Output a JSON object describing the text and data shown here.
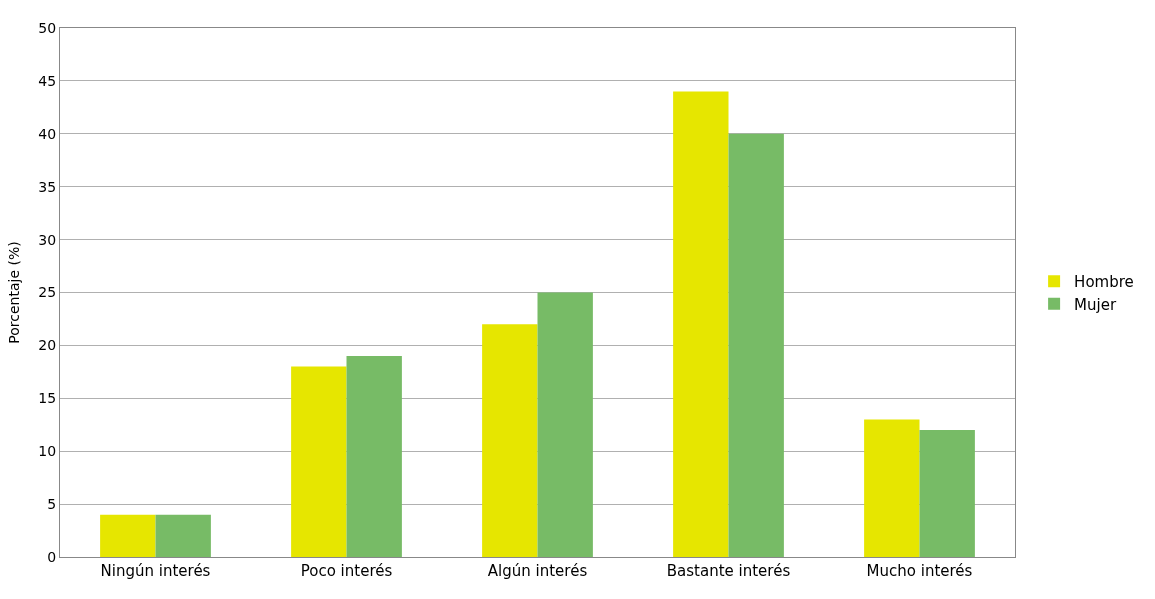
{
  "chart_data": {
    "type": "bar",
    "ylabel": "Porcentaje (%)",
    "categories": [
      "Ningún interés",
      "Poco interés",
      "Algún interés",
      "Bastante interés",
      "Mucho interés"
    ],
    "series": [
      {
        "name": "Hombre",
        "color": "#e6e600",
        "values": [
          4,
          18,
          22,
          44,
          13
        ]
      },
      {
        "name": "Mujer",
        "color": "#77bb66",
        "values": [
          4,
          19,
          25,
          40,
          12
        ]
      }
    ],
    "ylim": [
      0,
      50
    ],
    "yticks": [
      0,
      5,
      10,
      15,
      20,
      25,
      30,
      35,
      40,
      45,
      50
    ],
    "grid": "y",
    "legend": "right"
  }
}
